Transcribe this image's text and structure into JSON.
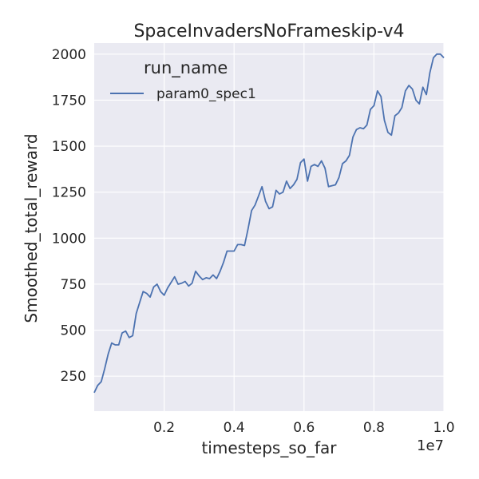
{
  "chart_data": {
    "type": "line",
    "title": "SpaceInvadersNoFrameskip-v4",
    "xlabel": "timesteps_so_far",
    "ylabel": "Smoothed_total_reward",
    "x_offset_label": "1e7",
    "xlim": [
      0,
      1.0
    ],
    "ylim": [
      60,
      2060
    ],
    "x_ticks": [
      0.2,
      0.4,
      0.6,
      0.8,
      1.0
    ],
    "x_tick_labels": [
      "0.2",
      "0.4",
      "0.6",
      "0.8",
      "1.0"
    ],
    "y_ticks": [
      250,
      500,
      750,
      1000,
      1250,
      1500,
      1750,
      2000
    ],
    "y_tick_labels": [
      "250",
      "500",
      "750",
      "1000",
      "1250",
      "1500",
      "1750",
      "2000"
    ],
    "grid": true,
    "legend": {
      "title": "run_name",
      "placement": "top-left"
    },
    "colors": {
      "background": "#eaeaf2",
      "grid": "#ffffff",
      "line": "#4c72b0",
      "text": "#262626"
    },
    "series": [
      {
        "name": "param0_spec1",
        "color": "#4c72b0",
        "x": [
          0.0,
          0.01,
          0.02,
          0.03,
          0.04,
          0.05,
          0.06,
          0.07,
          0.08,
          0.09,
          0.1,
          0.11,
          0.12,
          0.13,
          0.14,
          0.15,
          0.16,
          0.17,
          0.18,
          0.19,
          0.2,
          0.21,
          0.22,
          0.23,
          0.24,
          0.25,
          0.26,
          0.27,
          0.28,
          0.29,
          0.3,
          0.31,
          0.32,
          0.33,
          0.34,
          0.35,
          0.36,
          0.37,
          0.38,
          0.39,
          0.4,
          0.41,
          0.42,
          0.43,
          0.44,
          0.45,
          0.46,
          0.47,
          0.48,
          0.49,
          0.5,
          0.51,
          0.52,
          0.53,
          0.54,
          0.55,
          0.56,
          0.57,
          0.58,
          0.59,
          0.6,
          0.61,
          0.62,
          0.63,
          0.64,
          0.65,
          0.66,
          0.67,
          0.68,
          0.69,
          0.7,
          0.71,
          0.72,
          0.73,
          0.74,
          0.75,
          0.76,
          0.77,
          0.78,
          0.79,
          0.8,
          0.81,
          0.82,
          0.83,
          0.84,
          0.85,
          0.86,
          0.87,
          0.88,
          0.89,
          0.9,
          0.91,
          0.92,
          0.93,
          0.94,
          0.95,
          0.96,
          0.97,
          0.98,
          0.99,
          1.0
        ],
        "y": [
          160,
          200,
          220,
          290,
          370,
          430,
          420,
          420,
          485,
          495,
          460,
          470,
          590,
          650,
          710,
          700,
          680,
          735,
          750,
          710,
          690,
          730,
          760,
          790,
          750,
          755,
          765,
          740,
          755,
          820,
          795,
          775,
          785,
          780,
          800,
          780,
          820,
          870,
          930,
          930,
          930,
          965,
          965,
          960,
          1050,
          1150,
          1180,
          1230,
          1280,
          1200,
          1160,
          1170,
          1260,
          1240,
          1250,
          1310,
          1270,
          1290,
          1320,
          1410,
          1430,
          1310,
          1390,
          1400,
          1390,
          1420,
          1380,
          1280,
          1285,
          1290,
          1330,
          1405,
          1420,
          1450,
          1550,
          1590,
          1600,
          1595,
          1615,
          1700,
          1720,
          1800,
          1770,
          1640,
          1575,
          1560,
          1665,
          1680,
          1710,
          1800,
          1830,
          1810,
          1750,
          1730,
          1820,
          1780,
          1900,
          1980,
          2000,
          2000,
          1980
        ]
      }
    ]
  }
}
